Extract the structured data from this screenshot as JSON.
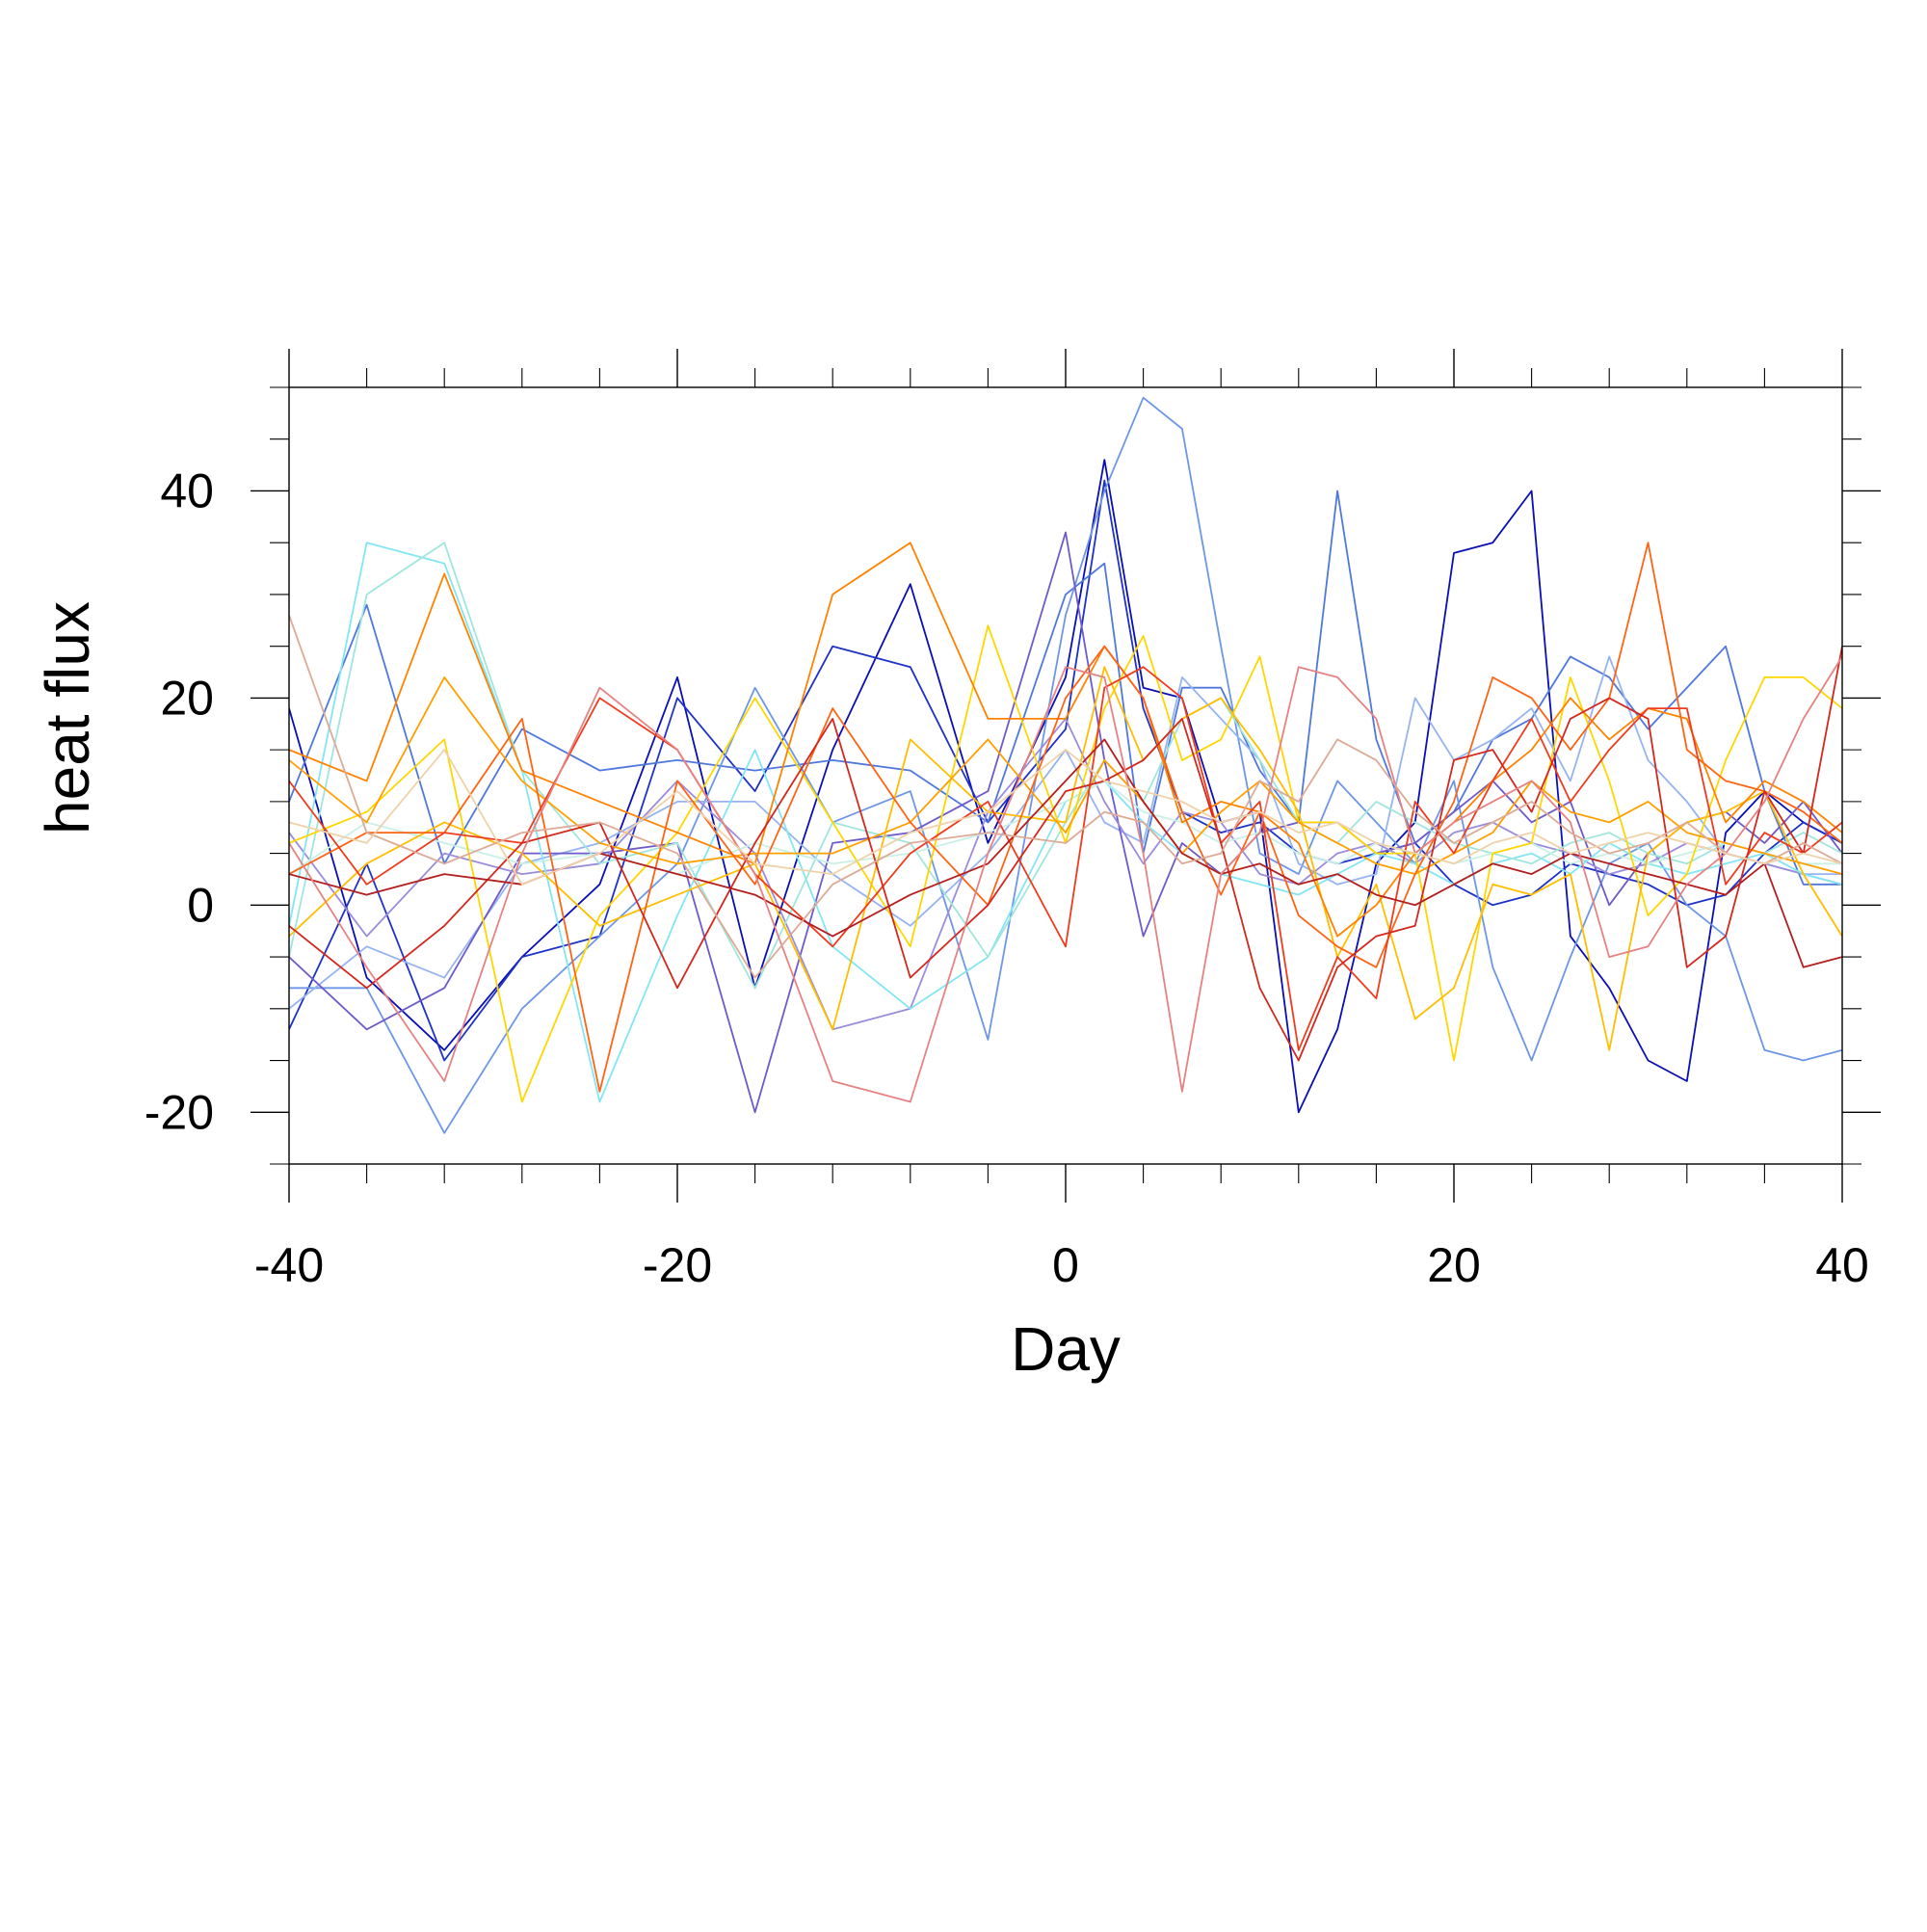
{
  "chart_data": {
    "type": "line",
    "title": "",
    "xlabel": "Day",
    "ylabel": "heat flux",
    "xlim": [
      -40,
      40
    ],
    "ylim": [
      -25,
      50
    ],
    "x_ticks": [
      -40,
      -20,
      0,
      20,
      40
    ],
    "y_ticks": [
      -20,
      0,
      20,
      40
    ],
    "x_tick_labels": [
      "-40",
      "-20",
      "0",
      "20",
      "40"
    ],
    "y_tick_labels": [
      "-20",
      "0",
      "20",
      "40"
    ],
    "grid": false,
    "legend": "none",
    "x": [
      -40,
      -36,
      -32,
      -28,
      -24,
      -20,
      -16,
      -12,
      -8,
      -4,
      0,
      2,
      4,
      6,
      8,
      10,
      12,
      14,
      16,
      18,
      20,
      22,
      24,
      26,
      28,
      30,
      32,
      34,
      36,
      38,
      40
    ],
    "series": [
      {
        "color": "#0a0fb4",
        "values": [
          19,
          -7,
          -14,
          -5,
          2,
          22,
          -8,
          15,
          31,
          6,
          22,
          43,
          21,
          20,
          8,
          9,
          -20,
          -12,
          4,
          8,
          34,
          35,
          40,
          -3,
          -8,
          -15,
          -17,
          7,
          11,
          8,
          6
        ]
      },
      {
        "color": "#1e32c8",
        "values": [
          -12,
          4,
          -15,
          -5,
          -3,
          20,
          11,
          25,
          23,
          8,
          17,
          41,
          19,
          9,
          7,
          8,
          5,
          4,
          5,
          6,
          2,
          0,
          1,
          4,
          3,
          2,
          0,
          1,
          5,
          8,
          6
        ]
      },
      {
        "color": "#5078dc",
        "values": [
          10,
          29,
          4,
          17,
          13,
          14,
          13,
          14,
          13,
          8,
          30,
          33,
          5,
          21,
          21,
          13,
          8,
          40,
          16,
          6,
          9,
          16,
          18,
          24,
          22,
          17,
          21,
          25,
          11,
          2,
          2
        ]
      },
      {
        "color": "#6e96e6",
        "values": [
          -8,
          -8,
          -22,
          -10,
          -3,
          4,
          21,
          8,
          11,
          -13,
          28,
          40,
          49,
          46,
          25,
          5,
          3,
          12,
          8,
          4,
          12,
          -6,
          -15,
          -5,
          4,
          6,
          0,
          -3,
          -14,
          -15,
          -14
        ]
      },
      {
        "color": "#96b4f0",
        "values": [
          -10,
          -4,
          -7,
          4,
          6,
          10,
          10,
          3,
          -2,
          5,
          15,
          8,
          6,
          22,
          18,
          14,
          4,
          2,
          3,
          20,
          14,
          16,
          19,
          12,
          24,
          14,
          10,
          5,
          4,
          3,
          3
        ]
      },
      {
        "color": "#6e5ac8",
        "values": [
          -5,
          -12,
          -8,
          5,
          5,
          6,
          -20,
          6,
          7,
          11,
          36,
          14,
          -3,
          6,
          3,
          7,
          8,
          8,
          5,
          6,
          9,
          12,
          8,
          10,
          0,
          5,
          8,
          9,
          6,
          10,
          5
        ]
      },
      {
        "color": "#9b8cdc",
        "values": [
          7,
          -3,
          5,
          3,
          4,
          12,
          5,
          -12,
          -10,
          9,
          18,
          10,
          4,
          9,
          8,
          3,
          2,
          5,
          6,
          4,
          7,
          8,
          6,
          5,
          3,
          4,
          6,
          5,
          4,
          3,
          2
        ]
      },
      {
        "color": "#82e6f5",
        "values": [
          -2,
          35,
          33,
          13,
          -19,
          -1,
          15,
          -4,
          -10,
          -5,
          10,
          12,
          8,
          5,
          3,
          2,
          1,
          3,
          5,
          4,
          2,
          4,
          5,
          3,
          6,
          4,
          3,
          4,
          5,
          3,
          2
        ]
      },
      {
        "color": "#a0e6dc",
        "values": [
          -5,
          30,
          35,
          13,
          4,
          6,
          -8,
          8,
          6,
          -5,
          8,
          14,
          10,
          18,
          20,
          14,
          8,
          6,
          10,
          8,
          6,
          5,
          4,
          6,
          7,
          5,
          4,
          6,
          5,
          7,
          5
        ]
      },
      {
        "color": "#c8f0e6",
        "values": [
          3,
          8,
          6,
          4,
          5,
          3,
          6,
          4,
          5,
          7,
          10,
          12,
          9,
          8,
          6,
          7,
          5,
          4,
          6,
          5,
          4,
          5,
          6,
          4,
          5,
          4,
          5,
          6,
          5,
          4,
          4
        ]
      },
      {
        "color": "#ffd700",
        "values": [
          6,
          9,
          16,
          -19,
          -1,
          7,
          20,
          8,
          -4,
          27,
          6,
          19,
          26,
          14,
          16,
          24,
          8,
          8,
          5,
          5,
          -15,
          5,
          6,
          22,
          12,
          -1,
          3,
          14,
          22,
          22,
          19
        ]
      },
      {
        "color": "#ffbe00",
        "values": [
          -3,
          4,
          8,
          5,
          -2,
          1,
          4,
          -12,
          16,
          9,
          8,
          23,
          14,
          18,
          20,
          15,
          9,
          -5,
          2,
          -11,
          -8,
          2,
          1,
          3,
          -14,
          5,
          8,
          9,
          11,
          3,
          -3
        ]
      },
      {
        "color": "#ffa000",
        "values": [
          14,
          8,
          22,
          12,
          6,
          4,
          5,
          5,
          8,
          16,
          7,
          14,
          10,
          5,
          9,
          12,
          8,
          6,
          4,
          3,
          5,
          7,
          12,
          9,
          8,
          10,
          7,
          6,
          5,
          4,
          3
        ]
      },
      {
        "color": "#ff8200",
        "values": [
          15,
          12,
          32,
          13,
          10,
          7,
          4,
          30,
          35,
          18,
          18,
          25,
          20,
          8,
          10,
          9,
          6,
          -3,
          0,
          5,
          8,
          12,
          15,
          20,
          16,
          19,
          18,
          8,
          12,
          10,
          7
        ]
      },
      {
        "color": "#ff6414",
        "values": [
          3,
          7,
          7,
          18,
          -18,
          12,
          2,
          19,
          8,
          0,
          20,
          25,
          20,
          9,
          1,
          9,
          -1,
          -4,
          -6,
          3,
          10,
          22,
          20,
          15,
          20,
          35,
          15,
          12,
          11,
          9,
          6
        ]
      },
      {
        "color": "#f03c1e",
        "values": [
          12,
          2,
          7,
          6,
          20,
          15,
          3,
          -4,
          5,
          10,
          -4,
          21,
          23,
          20,
          6,
          10,
          -14,
          -5,
          -9,
          10,
          5,
          12,
          18,
          10,
          15,
          19,
          19,
          2,
          7,
          5,
          8
        ]
      },
      {
        "color": "#d2281e",
        "values": [
          -2,
          -8,
          -2,
          6,
          8,
          -8,
          6,
          18,
          -7,
          0,
          11,
          12,
          14,
          18,
          6,
          -8,
          -15,
          -6,
          -3,
          -2,
          14,
          15,
          9,
          18,
          20,
          18,
          -6,
          -3,
          11,
          5,
          25
        ]
      },
      {
        "color": "#b41e1e",
        "values": [
          3,
          1,
          3,
          2,
          5,
          3,
          1,
          -3,
          1,
          4,
          12,
          16,
          10,
          5,
          3,
          4,
          2,
          3,
          1,
          0,
          2,
          4,
          3,
          5,
          4,
          3,
          2,
          1,
          4,
          -6,
          -5
        ]
      },
      {
        "color": "#e68282",
        "values": [
          6,
          -6,
          -17,
          5,
          21,
          15,
          3,
          -17,
          -19,
          5,
          23,
          22,
          5,
          -18,
          3,
          7,
          23,
          22,
          18,
          5,
          8,
          10,
          12,
          8,
          -5,
          -4,
          2,
          5,
          10,
          18,
          24
        ]
      },
      {
        "color": "#dcaa96",
        "values": [
          28,
          7,
          4,
          7,
          8,
          5,
          -7,
          2,
          6,
          7,
          6,
          9,
          8,
          4,
          5,
          12,
          10,
          16,
          14,
          9,
          6,
          8,
          10,
          7,
          5,
          6,
          8,
          5,
          4,
          6,
          4
        ]
      },
      {
        "color": "#f0d2aa",
        "values": [
          8,
          6,
          15,
          2,
          5,
          11,
          4,
          3,
          7,
          9,
          15,
          12,
          11,
          10,
          8,
          9,
          7,
          8,
          6,
          5,
          4,
          6,
          7,
          5,
          6,
          7,
          6,
          5,
          4,
          5,
          4
        ]
      }
    ]
  }
}
